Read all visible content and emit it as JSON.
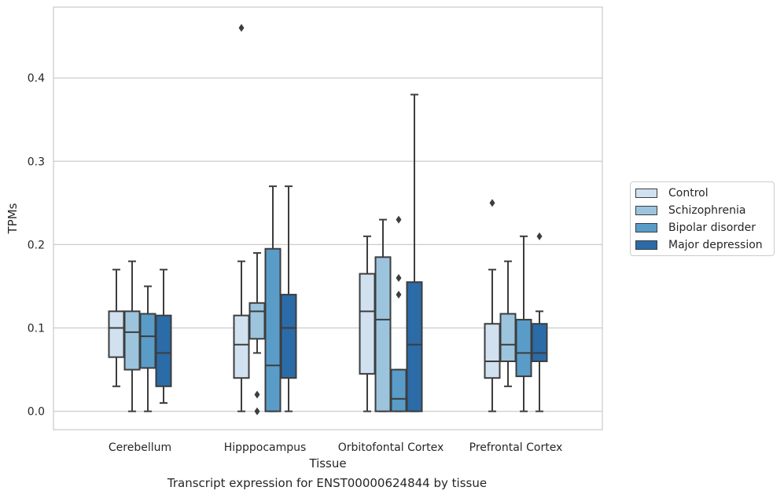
{
  "chart_data": {
    "type": "box",
    "title": "",
    "caption": "Transcript expression for ENST00000624844 by tissue",
    "xlabel": "Tissue",
    "ylabel": "TPMs",
    "ylim": [
      -0.022,
      0.485
    ],
    "yticks": [
      "0.0",
      "0.1",
      "0.2",
      "0.3",
      "0.4"
    ],
    "ytick_values": [
      0.0,
      0.1,
      0.2,
      0.3,
      0.4
    ],
    "grid": "horizontal",
    "legend_position": "outside-right",
    "categories": [
      "Cerebellum",
      "Hipppocampus",
      "Orbitofontal Cortex",
      "Prefrontal Cortex"
    ],
    "series": [
      {
        "name": "Control",
        "color": "#d1e1f0",
        "boxes": [
          {
            "whislo": 0.03,
            "q1": 0.065,
            "med": 0.1,
            "q3": 0.12,
            "whishi": 0.17,
            "fliers": []
          },
          {
            "whislo": 0.0,
            "q1": 0.04,
            "med": 0.08,
            "q3": 0.115,
            "whishi": 0.18,
            "fliers": [
              0.46
            ]
          },
          {
            "whislo": 0.0,
            "q1": 0.045,
            "med": 0.12,
            "q3": 0.165,
            "whishi": 0.21,
            "fliers": []
          },
          {
            "whislo": 0.0,
            "q1": 0.04,
            "med": 0.06,
            "q3": 0.105,
            "whishi": 0.17,
            "fliers": [
              0.25
            ]
          }
        ]
      },
      {
        "name": "Schizophrenia",
        "color": "#9cc4dd",
        "boxes": [
          {
            "whislo": 0.0,
            "q1": 0.05,
            "med": 0.095,
            "q3": 0.12,
            "whishi": 0.18,
            "fliers": []
          },
          {
            "whislo": 0.07,
            "q1": 0.087,
            "med": 0.12,
            "q3": 0.13,
            "whishi": 0.19,
            "fliers": [
              0.02,
              0.0
            ]
          },
          {
            "whislo": 0.0,
            "q1": 0.0,
            "med": 0.11,
            "q3": 0.185,
            "whishi": 0.23,
            "fliers": []
          },
          {
            "whislo": 0.03,
            "q1": 0.06,
            "med": 0.08,
            "q3": 0.117,
            "whishi": 0.18,
            "fliers": []
          }
        ]
      },
      {
        "name": "Bipolar disorder",
        "color": "#5a9cc8",
        "boxes": [
          {
            "whislo": 0.0,
            "q1": 0.052,
            "med": 0.09,
            "q3": 0.117,
            "whishi": 0.15,
            "fliers": []
          },
          {
            "whislo": 0.0,
            "q1": 0.0,
            "med": 0.055,
            "q3": 0.195,
            "whishi": 0.27,
            "fliers": []
          },
          {
            "whislo": 0.0,
            "q1": 0.0,
            "med": 0.015,
            "q3": 0.05,
            "whishi": 0.05,
            "fliers": [
              0.23,
              0.16,
              0.14
            ]
          },
          {
            "whislo": 0.0,
            "q1": 0.042,
            "med": 0.07,
            "q3": 0.11,
            "whishi": 0.21,
            "fliers": []
          }
        ]
      },
      {
        "name": "Major depression",
        "color": "#2b6ba7",
        "boxes": [
          {
            "whislo": 0.01,
            "q1": 0.03,
            "med": 0.07,
            "q3": 0.115,
            "whishi": 0.17,
            "fliers": []
          },
          {
            "whislo": 0.0,
            "q1": 0.04,
            "med": 0.1,
            "q3": 0.14,
            "whishi": 0.27,
            "fliers": []
          },
          {
            "whislo": 0.0,
            "q1": 0.0,
            "med": 0.08,
            "q3": 0.155,
            "whishi": 0.38,
            "fliers": []
          },
          {
            "whislo": 0.0,
            "q1": 0.06,
            "med": 0.07,
            "q3": 0.105,
            "whishi": 0.12,
            "fliers": [
              0.21
            ]
          }
        ]
      }
    ]
  }
}
